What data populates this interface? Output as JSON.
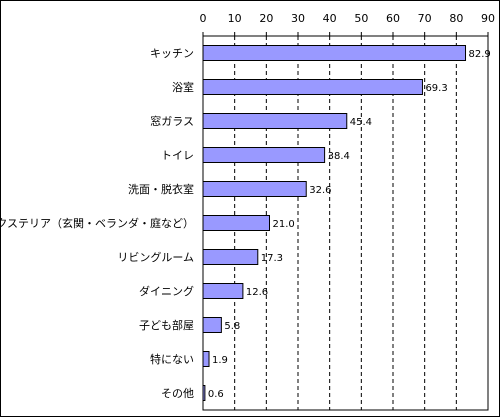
{
  "chart_data": {
    "type": "bar",
    "orientation": "horizontal",
    "title": "",
    "xlabel": "",
    "ylabel": "",
    "xlim": [
      0,
      90
    ],
    "ticks": [
      0,
      10,
      20,
      30,
      40,
      50,
      60,
      70,
      80,
      90
    ],
    "tick_labels": [
      "0",
      "10",
      "20",
      "30",
      "40",
      "50",
      "60",
      "70",
      "80",
      "90"
    ],
    "categories": [
      "キッチン",
      "浴室",
      "窓ガラス",
      "トイレ",
      "洗面・脱衣室",
      "エクステリア（玄関・ベランダ・庭など）",
      "リビングルーム",
      "ダイニング",
      "子ども部屋",
      "特にない",
      "その他"
    ],
    "values": [
      82.9,
      69.3,
      45.4,
      38.4,
      32.6,
      21.0,
      17.3,
      12.6,
      5.8,
      1.9,
      0.6
    ],
    "value_labels": [
      "82.9",
      "69.3",
      "45.4",
      "38.4",
      "32.6",
      "21.0",
      "17.3",
      "12.6",
      "5.8",
      "1.9",
      "0.6"
    ],
    "grid": true,
    "legend": "none",
    "colors": {
      "bar_fill": "#9999ff",
      "bar_stroke": "#000000",
      "grid": "#000000",
      "axis": "#000000",
      "text": "#000000"
    }
  }
}
